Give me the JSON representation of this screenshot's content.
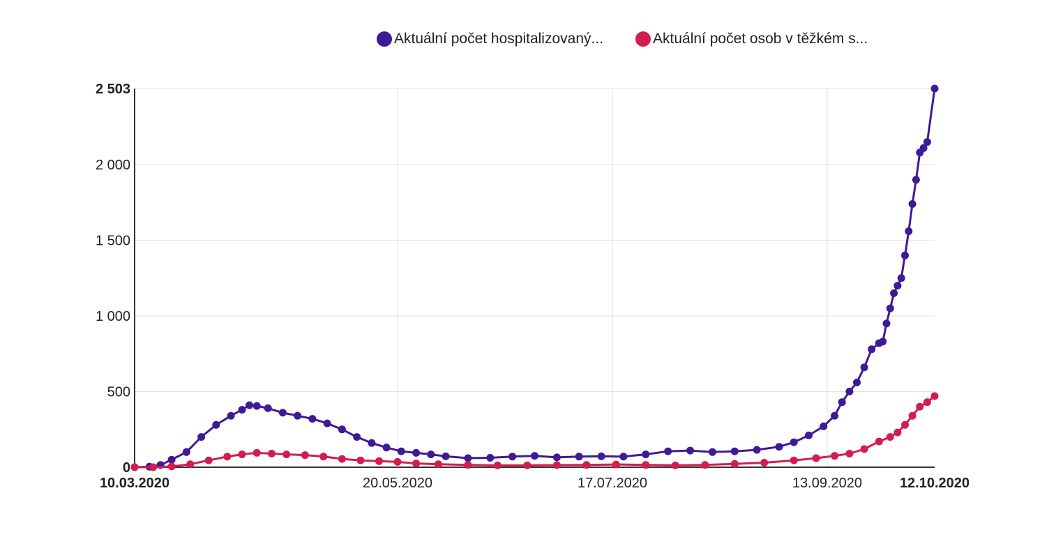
{
  "chart_data": {
    "type": "line",
    "y_max_label": "2 503",
    "y_ticks": [
      {
        "value": 0,
        "label": "0",
        "bold": true
      },
      {
        "value": 500,
        "label": "500",
        "bold": false
      },
      {
        "value": 1000,
        "label": "1 000",
        "bold": false
      },
      {
        "value": 1500,
        "label": "1 500",
        "bold": false
      },
      {
        "value": 2000,
        "label": "2 000",
        "bold": false
      },
      {
        "value": 2503,
        "label": "2 503",
        "bold": true
      }
    ],
    "x_ticks": [
      {
        "date": "2020-03-10",
        "label": "10.03.2020",
        "bold": true
      },
      {
        "date": "2020-05-20",
        "label": "20.05.2020",
        "bold": false
      },
      {
        "date": "2020-07-17",
        "label": "17.07.2020",
        "bold": false
      },
      {
        "date": "2020-09-13",
        "label": "13.09.2020",
        "bold": false
      },
      {
        "date": "2020-10-12",
        "label": "12.10.2020",
        "bold": true
      }
    ],
    "x_range": [
      "2020-03-10",
      "2020-10-12"
    ],
    "y_range": [
      0,
      2503
    ],
    "grid": true,
    "legend_position": "top",
    "series": [
      {
        "name": "Aktuální počet hospitalizovaný...",
        "color": "#3f1a96",
        "points": [
          [
            "2020-03-10",
            0
          ],
          [
            "2020-03-14",
            3
          ],
          [
            "2020-03-17",
            15
          ],
          [
            "2020-03-20",
            50
          ],
          [
            "2020-03-24",
            100
          ],
          [
            "2020-03-28",
            200
          ],
          [
            "2020-04-01",
            280
          ],
          [
            "2020-04-05",
            340
          ],
          [
            "2020-04-08",
            380
          ],
          [
            "2020-04-10",
            410
          ],
          [
            "2020-04-12",
            405
          ],
          [
            "2020-04-15",
            390
          ],
          [
            "2020-04-19",
            360
          ],
          [
            "2020-04-23",
            340
          ],
          [
            "2020-04-27",
            320
          ],
          [
            "2020-05-01",
            290
          ],
          [
            "2020-05-05",
            250
          ],
          [
            "2020-05-09",
            200
          ],
          [
            "2020-05-13",
            160
          ],
          [
            "2020-05-17",
            130
          ],
          [
            "2020-05-21",
            105
          ],
          [
            "2020-05-25",
            95
          ],
          [
            "2020-05-29",
            85
          ],
          [
            "2020-06-02",
            72
          ],
          [
            "2020-06-08",
            60
          ],
          [
            "2020-06-14",
            62
          ],
          [
            "2020-06-20",
            70
          ],
          [
            "2020-06-26",
            75
          ],
          [
            "2020-07-02",
            65
          ],
          [
            "2020-07-08",
            70
          ],
          [
            "2020-07-14",
            72
          ],
          [
            "2020-07-20",
            70
          ],
          [
            "2020-07-26",
            85
          ],
          [
            "2020-08-01",
            105
          ],
          [
            "2020-08-07",
            110
          ],
          [
            "2020-08-13",
            100
          ],
          [
            "2020-08-19",
            105
          ],
          [
            "2020-08-25",
            115
          ],
          [
            "2020-08-31",
            135
          ],
          [
            "2020-09-04",
            165
          ],
          [
            "2020-09-08",
            210
          ],
          [
            "2020-09-12",
            270
          ],
          [
            "2020-09-15",
            340
          ],
          [
            "2020-09-17",
            430
          ],
          [
            "2020-09-19",
            500
          ],
          [
            "2020-09-21",
            560
          ],
          [
            "2020-09-23",
            660
          ],
          [
            "2020-09-25",
            780
          ],
          [
            "2020-09-27",
            820
          ],
          [
            "2020-09-28",
            830
          ],
          [
            "2020-09-29",
            950
          ],
          [
            "2020-09-30",
            1050
          ],
          [
            "2020-10-01",
            1150
          ],
          [
            "2020-10-02",
            1200
          ],
          [
            "2020-10-03",
            1250
          ],
          [
            "2020-10-04",
            1400
          ],
          [
            "2020-10-05",
            1560
          ],
          [
            "2020-10-06",
            1740
          ],
          [
            "2020-10-07",
            1900
          ],
          [
            "2020-10-08",
            2080
          ],
          [
            "2020-10-09",
            2110
          ],
          [
            "2020-10-10",
            2150
          ],
          [
            "2020-10-12",
            2503
          ]
        ]
      },
      {
        "name": "Aktuální počet osob v těžkém s...",
        "color": "#d21e4d",
        "points": [
          [
            "2020-03-10",
            0
          ],
          [
            "2020-03-15",
            0
          ],
          [
            "2020-03-20",
            5
          ],
          [
            "2020-03-25",
            20
          ],
          [
            "2020-03-30",
            45
          ],
          [
            "2020-04-04",
            70
          ],
          [
            "2020-04-08",
            85
          ],
          [
            "2020-04-12",
            95
          ],
          [
            "2020-04-16",
            90
          ],
          [
            "2020-04-20",
            85
          ],
          [
            "2020-04-25",
            80
          ],
          [
            "2020-04-30",
            70
          ],
          [
            "2020-05-05",
            55
          ],
          [
            "2020-05-10",
            45
          ],
          [
            "2020-05-15",
            40
          ],
          [
            "2020-05-20",
            35
          ],
          [
            "2020-05-25",
            25
          ],
          [
            "2020-05-31",
            20
          ],
          [
            "2020-06-08",
            15
          ],
          [
            "2020-06-16",
            12
          ],
          [
            "2020-06-24",
            12
          ],
          [
            "2020-07-02",
            14
          ],
          [
            "2020-07-10",
            15
          ],
          [
            "2020-07-18",
            18
          ],
          [
            "2020-07-26",
            15
          ],
          [
            "2020-08-03",
            12
          ],
          [
            "2020-08-11",
            15
          ],
          [
            "2020-08-19",
            22
          ],
          [
            "2020-08-27",
            30
          ],
          [
            "2020-09-04",
            45
          ],
          [
            "2020-09-10",
            60
          ],
          [
            "2020-09-15",
            75
          ],
          [
            "2020-09-19",
            90
          ],
          [
            "2020-09-23",
            120
          ],
          [
            "2020-09-27",
            170
          ],
          [
            "2020-09-30",
            200
          ],
          [
            "2020-10-02",
            230
          ],
          [
            "2020-10-04",
            280
          ],
          [
            "2020-10-06",
            340
          ],
          [
            "2020-10-08",
            400
          ],
          [
            "2020-10-10",
            430
          ],
          [
            "2020-10-12",
            470
          ]
        ]
      }
    ]
  }
}
